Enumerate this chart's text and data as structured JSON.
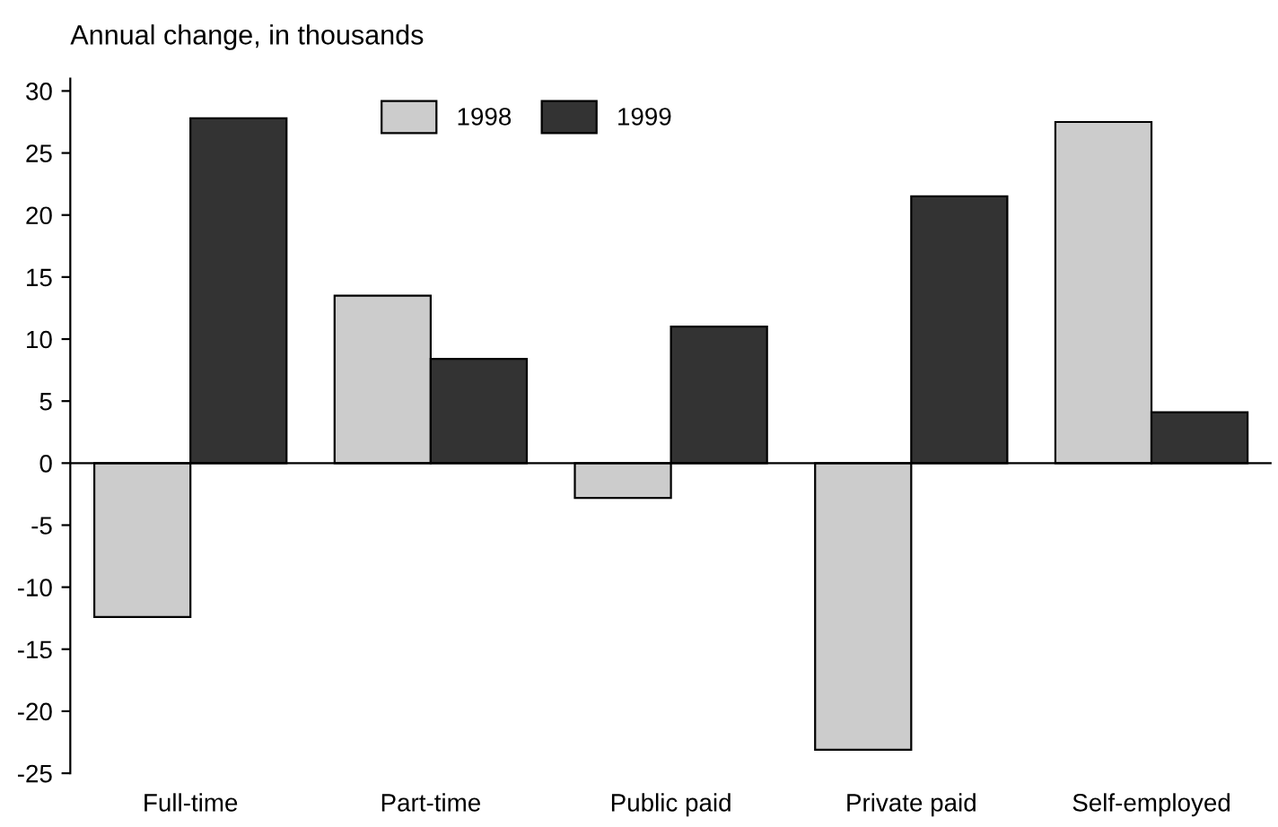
{
  "chart_data": {
    "type": "bar",
    "ylabel": "Annual change, in thousands",
    "categories": [
      "Full-time",
      "Part-time",
      "Public paid",
      "Private paid",
      "Self-employed"
    ],
    "series": [
      {
        "name": "1998",
        "color": "#cccccc",
        "values": [
          -12.4,
          13.5,
          -2.8,
          -23.1,
          27.5
        ]
      },
      {
        "name": "1999",
        "color": "#333333",
        "values": [
          27.8,
          8.4,
          11.0,
          21.5,
          4.1
        ]
      }
    ],
    "ylim": [
      -25,
      31
    ],
    "yticks": [
      -25,
      -20,
      -15,
      -10,
      -5,
      0,
      5,
      10,
      15,
      20,
      25,
      30
    ],
    "ref_lines": [
      {
        "axis": "y",
        "value": 0,
        "color": "#000000"
      }
    ],
    "legend": "top",
    "grid": false
  }
}
